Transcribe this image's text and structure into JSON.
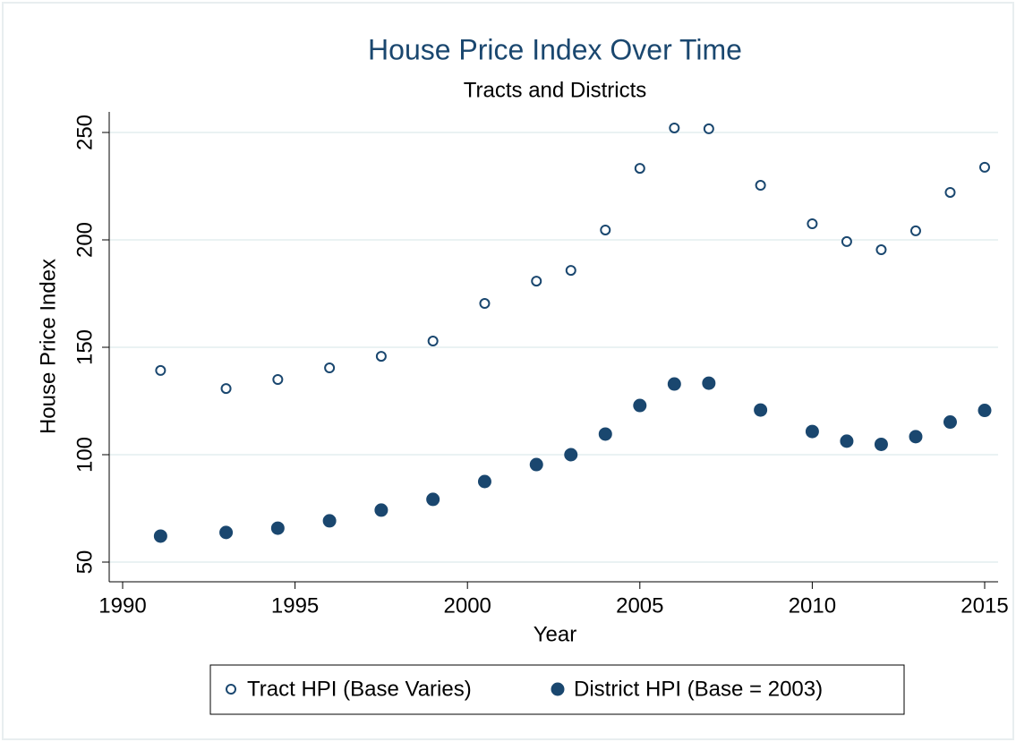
{
  "chart_data": {
    "type": "scatter",
    "title": "House Price Index Over Time",
    "subtitle": "Tracts and Districts",
    "x_label": "Year",
    "y_label": "House Price Index",
    "xlim": [
      1990,
      2015
    ],
    "xticks": [
      1990,
      1995,
      2000,
      2005,
      2010,
      2015
    ],
    "ylim": [
      50,
      250
    ],
    "yticks": [
      50,
      100,
      150,
      200,
      250
    ],
    "grid": true,
    "legend": "bottom",
    "series": [
      {
        "name": "Tract HPI (Base Varies)",
        "color": "#1a476f",
        "marker": "hollow",
        "x": [
          1991.1,
          1993,
          1994.5,
          1996,
          1997.5,
          1999,
          2000.5,
          2002,
          2003,
          2004,
          2005,
          2006,
          2007,
          2008.5,
          2010,
          2011,
          2012,
          2013,
          2014,
          2015
        ],
        "values": [
          139.2,
          130.8,
          135,
          140.4,
          145.8,
          152.9,
          170.4,
          180.8,
          185.8,
          204.6,
          233.3,
          252.1,
          251.7,
          225.4,
          207.5,
          199.2,
          195.4,
          204.2,
          222.1,
          233.8
        ]
      },
      {
        "name": "District HPI (Base = 2003)",
        "color": "#1a476f",
        "marker": "filled",
        "x": [
          1991.1,
          1993,
          1994.5,
          1996,
          1997.5,
          1999,
          2000.5,
          2002,
          2003,
          2004,
          2005,
          2006,
          2007,
          2008.5,
          2010,
          2011,
          2012,
          2013,
          2014,
          2015
        ],
        "values": [
          62.1,
          63.8,
          65.8,
          69.2,
          74.2,
          79.2,
          87.5,
          95.4,
          100,
          109.6,
          122.9,
          132.9,
          133.3,
          120.8,
          110.8,
          106.3,
          104.8,
          108.4,
          115.2,
          120.6
        ]
      }
    ]
  }
}
